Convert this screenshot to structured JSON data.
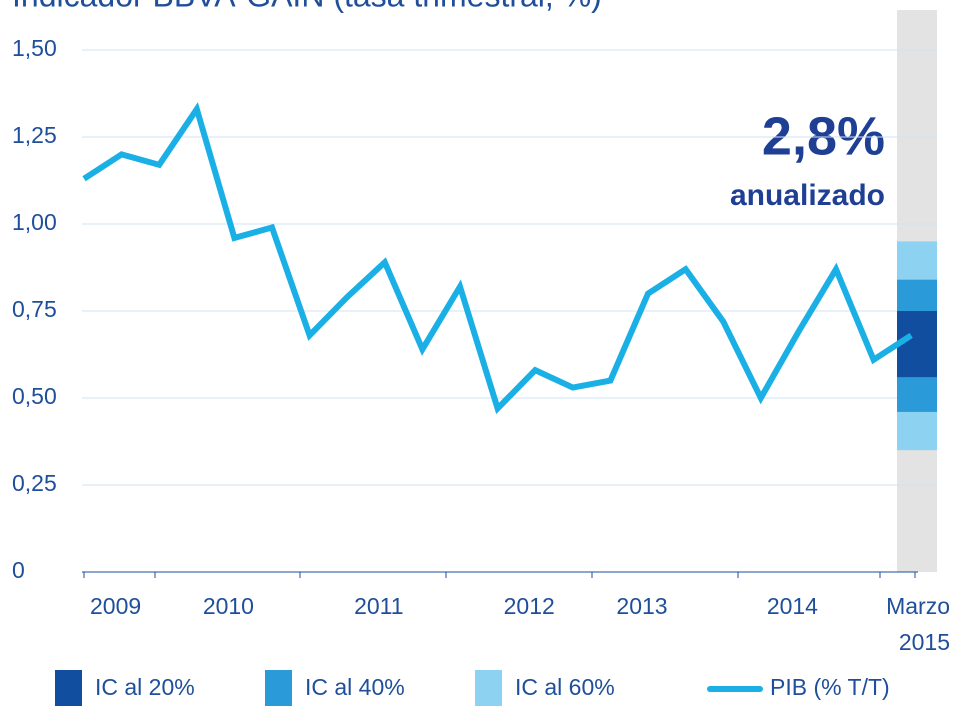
{
  "chart_data": {
    "type": "line",
    "title": "Indicador BBVA-GAIN (tasa trimestral, %)",
    "categories": [
      null,
      "2009",
      null,
      null,
      "2010",
      null,
      null,
      null,
      "2011",
      null,
      null,
      null,
      "2012",
      null,
      null,
      "2013",
      null,
      null,
      null,
      "2014",
      null,
      null,
      "Marzo 2015"
    ],
    "series": [
      {
        "name": "PIB (% T/T)",
        "color": "#1ab0e6",
        "values": [
          1.13,
          1.2,
          1.17,
          1.33,
          0.96,
          0.99,
          0.68,
          0.79,
          0.89,
          0.64,
          0.82,
          0.47,
          0.58,
          0.53,
          0.55,
          0.8,
          0.87,
          0.72,
          0.5,
          0.69,
          0.87,
          0.61,
          0.68
        ]
      }
    ],
    "intervals": [
      {
        "name": "IC al 60%",
        "color": "#8ed2f2",
        "low": 0.35,
        "high": 0.95
      },
      {
        "name": "IC al 40%",
        "color": "#2a9ad8",
        "low": 0.46,
        "high": 0.84
      },
      {
        "name": "IC al 20%",
        "color": "#124ea0",
        "low": 0.56,
        "high": 0.75
      }
    ],
    "legend_order": [
      2,
      1,
      0
    ],
    "annotation": {
      "value": "2,8%",
      "text": "anualizado"
    },
    "ylim": [
      0,
      1.5
    ],
    "yticks": [
      0,
      {
        "value": 0.25,
        "label": "0,25"
      },
      {
        "value": 0.5,
        "label": "0,50"
      },
      {
        "value": 0.75,
        "label": "0,75"
      },
      {
        "value": 1,
        "label": "1,00"
      },
      {
        "value": 1.25,
        "label": "1,25"
      },
      {
        "value": 1.5,
        "label": "1,50"
      }
    ],
    "grid": true
  }
}
